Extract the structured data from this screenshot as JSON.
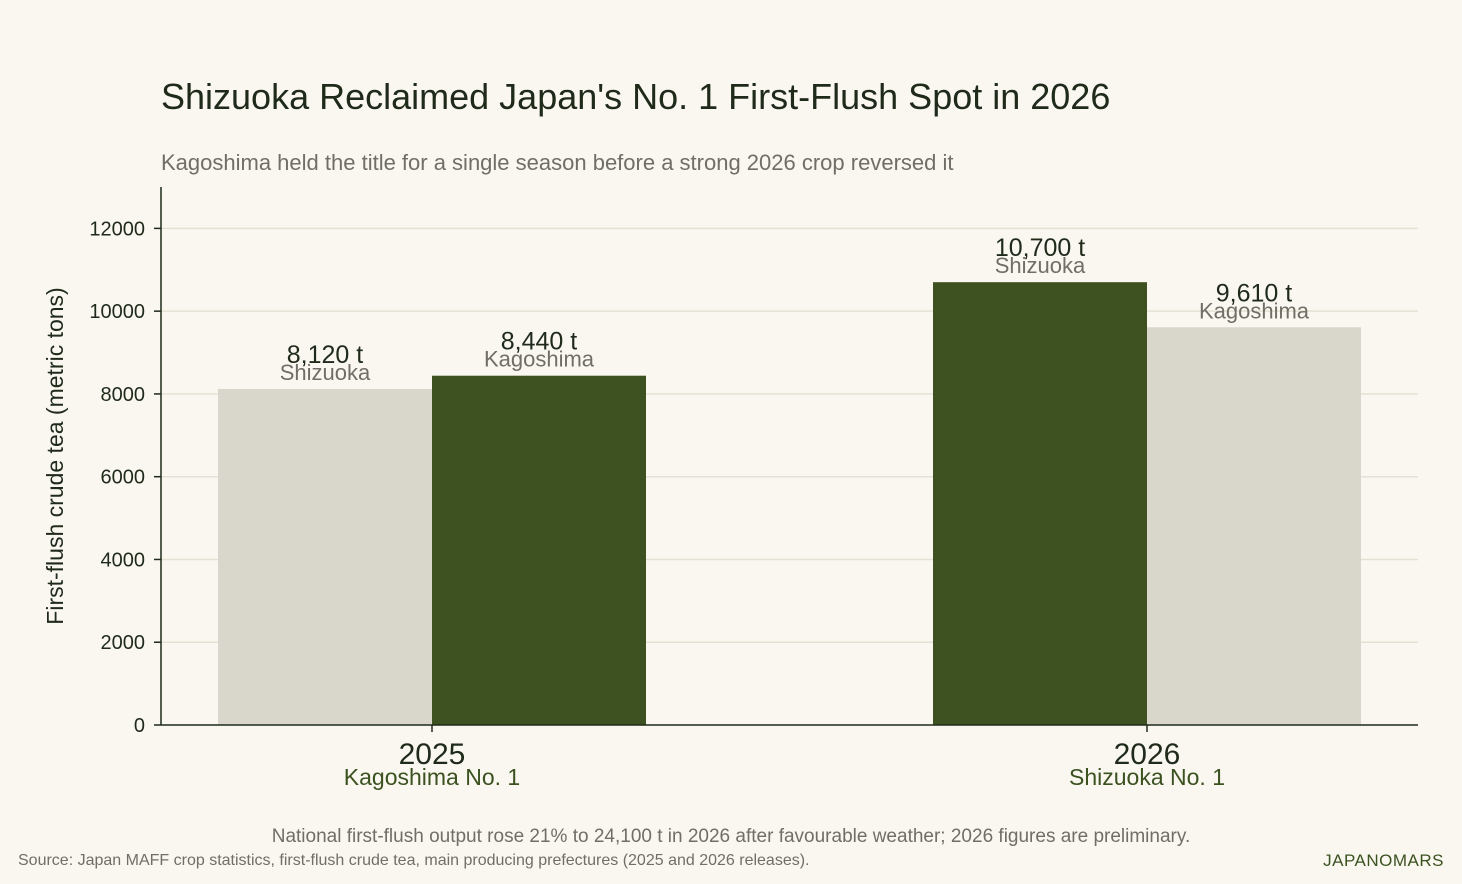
{
  "chart_data": {
    "type": "bar",
    "title": "Shizuoka Reclaimed Japan's No. 1 First-Flush Spot in 2026",
    "subtitle": "Kagoshima held the title for a single season before a strong 2026 crop reversed it",
    "ylabel": "First-flush crude tea (metric tons)",
    "ylim": [
      0,
      13000
    ],
    "yticks": [
      0,
      2000,
      4000,
      6000,
      8000,
      10000,
      12000
    ],
    "grid": true,
    "categories": [
      {
        "label": "2025",
        "sublabel": "Kagoshima No. 1"
      },
      {
        "label": "2026",
        "sublabel": "Shizuoka No. 1"
      }
    ],
    "series": [
      {
        "name": "Shizuoka",
        "values": [
          8120,
          10700
        ],
        "value_labels": [
          "8,120 t",
          "10,700 t"
        ]
      },
      {
        "name": "Kagoshima",
        "values": [
          8440,
          9610
        ],
        "value_labels": [
          "8,440 t",
          "9,610 t"
        ]
      }
    ],
    "colors": {
      "leader": "#3d5220",
      "other": "#d9d7cb",
      "axis": "#1f2a1a",
      "grid": "#e5e2d5",
      "sublabel": "#3b5220",
      "muted": "#6f6f67"
    }
  },
  "note": "National first-flush output rose 21% to 24,100 t in 2026 after favourable weather; 2026 figures are preliminary.",
  "source": "Source: Japan MAFF crop statistics, first-flush crude tea, main producing prefectures (2025 and 2026 releases).",
  "brand": "JAPANOMARS"
}
